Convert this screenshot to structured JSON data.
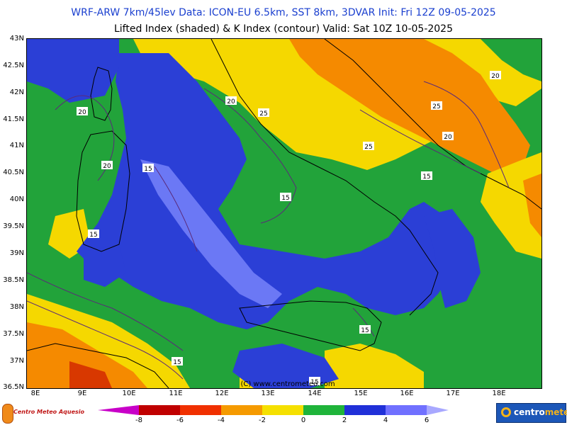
{
  "header": {
    "title_line1": "WRF-ARW 7km/45lev   Data: ICON-EU 6.5km, SST 8km, 3DVAR   Init: Fri 12Z 09-05-2025",
    "title_line2": "Lifted Index (shaded) & K Index (contour)   Valid: Sat 10Z 10-05-2025"
  },
  "map": {
    "latitude_labels": [
      "43N",
      "42.5N",
      "42N",
      "41.5N",
      "41N",
      "40.5N",
      "40N",
      "39.5N",
      "39N",
      "38.5N",
      "38N",
      "37.5N",
      "37N",
      "36.5N"
    ],
    "longitude_labels": [
      "8E",
      "9E",
      "10E",
      "11E",
      "12E",
      "13E",
      "14E",
      "15E",
      "16E",
      "17E",
      "18E"
    ],
    "contour_labels": [
      "20",
      "20",
      "20",
      "25",
      "25",
      "25",
      "20",
      "15",
      "15",
      "15",
      "15",
      "15",
      "15",
      "15",
      "20"
    ],
    "watermark": "(C) www.centrometeo.com",
    "colors": {
      "ocean_stable": "#2b3fd6",
      "stable_light": "#6b78f5",
      "neutral": "#22a33a",
      "yellow": "#f5d800",
      "orange": "#f58a00",
      "red": "#d83800",
      "contour": "#5a2a7a",
      "coast": "#000000",
      "borders": "#a0a0a0"
    }
  },
  "colorbar": {
    "ticks": [
      "-8",
      "-6",
      "-4",
      "-2",
      "0",
      "2",
      "4",
      "6"
    ],
    "colors": [
      "#c800c8",
      "#c00000",
      "#f03000",
      "#f59a00",
      "#f5e000",
      "#1fb43a",
      "#2030d8",
      "#7070ff",
      "#a8a8ff"
    ]
  },
  "logos": {
    "left": "Centro Meteo Aquesio",
    "right_prefix": "centro",
    "right_suffix": "meteo"
  }
}
